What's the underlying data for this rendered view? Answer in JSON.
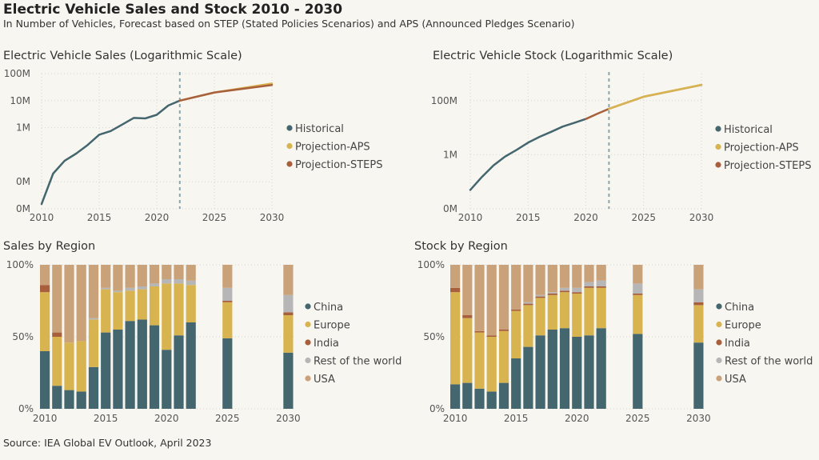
{
  "header": {
    "title": "Electric Vehicle Sales and Stock 2010 - 2030",
    "subtitle": "In Number of Vehicles, Forecast based on STEP (Stated Policies Scenarios) and APS (Announced Pledges Scenario)"
  },
  "source": "Source: IEA Global EV Outlook, April 2023",
  "colors": {
    "Historical": "#44666e",
    "Projection-APS": "#d8b450",
    "Projection-STEPS": "#a8603c",
    "China": "#44666e",
    "Europe": "#d8b450",
    "India": "#a8603c",
    "Rest of the world": "#b6b6b6",
    "USA": "#c9a27a",
    "divider": "#8ca5aa",
    "grid": "#d4d4d0"
  },
  "chart_data": [
    {
      "id": "sales",
      "type": "line",
      "title": "Electric Vehicle Sales (Logarithmic Scale)",
      "scale": "log",
      "xlim": [
        2010,
        2030
      ],
      "ylim": [
        1000,
        100000000
      ],
      "xticks": [
        2010,
        2015,
        2020,
        2025,
        2030
      ],
      "yticks": [
        {
          "value": 1000,
          "label": "0M"
        },
        {
          "value": 10000,
          "label": "0M"
        },
        {
          "value": 1000000,
          "label": "1M"
        },
        {
          "value": 10000000,
          "label": "10M"
        },
        {
          "value": 100000000,
          "label": "100M"
        }
      ],
      "forecast_divider": 2022,
      "legend": [
        "Historical",
        "Projection-APS",
        "Projection-STEPS"
      ],
      "series": [
        {
          "name": "Historical",
          "x": [
            2010,
            2011,
            2012,
            2013,
            2014,
            2015,
            2016,
            2017,
            2018,
            2019,
            2020,
            2021,
            2022
          ],
          "y": [
            1500,
            20000,
            60000,
            110000,
            230000,
            550000,
            750000,
            1300000,
            2300000,
            2200000,
            3000000,
            6600000,
            10000000
          ]
        },
        {
          "name": "Projection-APS",
          "x": [
            2022,
            2025,
            2030
          ],
          "y": [
            10000000,
            20000000,
            43000000
          ]
        },
        {
          "name": "Projection-STEPS",
          "x": [
            2022,
            2025,
            2030
          ],
          "y": [
            10000000,
            20000000,
            38000000
          ]
        }
      ]
    },
    {
      "id": "stock",
      "type": "line",
      "title": "Electric Vehicle Stock (Logarithmic Scale)",
      "scale": "log",
      "xlim": [
        2010,
        2030
      ],
      "ylim": [
        10000,
        1000000000
      ],
      "xticks": [
        2010,
        2015,
        2020,
        2025,
        2030
      ],
      "yticks": [
        {
          "value": 10000,
          "label": "0M"
        },
        {
          "value": 1000000,
          "label": "1M"
        },
        {
          "value": 100000000,
          "label": "100M"
        }
      ],
      "forecast_divider": 2022,
      "legend": [
        "Historical",
        "Projection-APS",
        "Projection-STEPS"
      ],
      "series": [
        {
          "name": "Historical",
          "x": [
            2010,
            2011,
            2012,
            2013,
            2014,
            2015,
            2016,
            2017,
            2018,
            2019,
            2020
          ],
          "y": [
            50000,
            150000,
            400000,
            850000,
            1500000,
            2800000,
            4600000,
            7000000,
            11000000,
            15000000,
            21000000
          ]
        },
        {
          "name": "Projection-STEPS",
          "x": [
            2020,
            2021,
            2022,
            2025,
            2030
          ],
          "y": [
            21000000,
            33000000,
            50000000,
            140000000,
            380000000
          ]
        },
        {
          "name": "Projection-APS",
          "x": [
            2022,
            2025,
            2030
          ],
          "y": [
            50000000,
            140000000,
            385000000
          ]
        }
      ]
    },
    {
      "id": "sales-region",
      "type": "bar",
      "stacked": true,
      "title": "Sales by Region",
      "ylim": [
        0,
        100
      ],
      "yticks": [
        {
          "value": 0,
          "label": "0%"
        },
        {
          "value": 50,
          "label": "50%"
        },
        {
          "value": 100,
          "label": "100%"
        }
      ],
      "xticks": [
        2010,
        2015,
        2020,
        2025,
        2030
      ],
      "categories": [
        2010,
        2011,
        2012,
        2013,
        2014,
        2015,
        2016,
        2017,
        2018,
        2019,
        2020,
        2021,
        2022,
        2025,
        2030
      ],
      "legend": [
        "China",
        "Europe",
        "India",
        "Rest of the world",
        "USA"
      ],
      "series": [
        {
          "name": "China",
          "values": [
            40,
            16,
            13,
            12,
            29,
            53,
            55,
            61,
            62,
            58,
            41,
            51,
            60,
            49,
            39
          ]
        },
        {
          "name": "Europe",
          "values": [
            41,
            34,
            33,
            35,
            33,
            30,
            26,
            21,
            21,
            27,
            46,
            36,
            26,
            25,
            26
          ]
        },
        {
          "name": "India",
          "values": [
            5,
            3,
            0,
            0,
            0,
            0,
            0,
            0,
            0,
            0,
            0,
            0,
            0,
            1,
            2
          ]
        },
        {
          "name": "Rest of the world",
          "values": [
            0,
            0,
            0,
            0,
            1,
            1,
            1,
            2,
            2,
            2,
            3,
            3,
            3,
            9,
            12
          ]
        },
        {
          "name": "USA",
          "values": [
            14,
            47,
            54,
            53,
            37,
            16,
            18,
            16,
            15,
            13,
            10,
            10,
            11,
            16,
            21
          ]
        }
      ]
    },
    {
      "id": "stock-region",
      "type": "bar",
      "stacked": true,
      "title": "Stock by Region",
      "ylim": [
        0,
        100
      ],
      "yticks": [
        {
          "value": 0,
          "label": "0%"
        },
        {
          "value": 50,
          "label": "50%"
        },
        {
          "value": 100,
          "label": "100%"
        }
      ],
      "xticks": [
        2010,
        2015,
        2020,
        2025,
        2030
      ],
      "categories": [
        2010,
        2011,
        2012,
        2013,
        2014,
        2015,
        2016,
        2017,
        2018,
        2019,
        2020,
        2021,
        2022,
        2025,
        2030
      ],
      "legend": [
        "China",
        "Europe",
        "India",
        "Rest of the world",
        "USA"
      ],
      "series": [
        {
          "name": "China",
          "values": [
            17,
            18,
            14,
            12,
            18,
            35,
            43,
            51,
            55,
            56,
            50,
            51,
            56,
            52,
            46
          ]
        },
        {
          "name": "Europe",
          "values": [
            64,
            45,
            39,
            38,
            36,
            33,
            29,
            26,
            24,
            25,
            30,
            33,
            28,
            27,
            26
          ]
        },
        {
          "name": "India",
          "values": [
            3,
            2,
            1,
            1,
            1,
            1,
            1,
            1,
            1,
            1,
            1,
            1,
            1,
            1,
            2
          ]
        },
        {
          "name": "Rest of the world",
          "values": [
            0,
            0,
            0,
            0,
            0,
            0,
            1,
            1,
            1,
            2,
            3,
            3,
            4,
            7,
            9
          ]
        },
        {
          "name": "USA",
          "values": [
            16,
            35,
            46,
            49,
            45,
            31,
            26,
            21,
            19,
            16,
            16,
            12,
            11,
            13,
            17
          ]
        }
      ]
    }
  ]
}
